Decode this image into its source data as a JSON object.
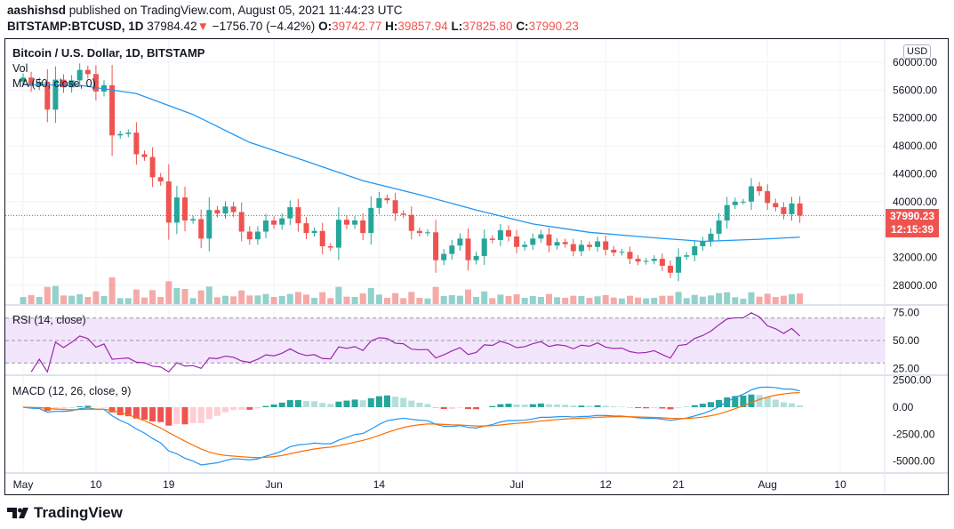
{
  "header": {
    "author": "aashishsd",
    "published": "published on TradingView.com, August 05, 2021 11:44:23 UTC",
    "symbol": "BITSTAMP:BTCUSD, 1D",
    "last": "37984.42",
    "change": "−1756.70 (−4.42%)",
    "o_label": "O:",
    "o": "39742.77",
    "h_label": "H:",
    "h": "39857.94",
    "l_label": "L:",
    "l": "37825.80",
    "c_label": "C:",
    "c": "37990.23"
  },
  "legend": {
    "title": "Bitcoin / U.S. Dollar, 1D, BITSTAMP",
    "vol": "Vol",
    "ma": "MA (50, close, 0)",
    "rsi": "RSI (14, close)",
    "macd": "MACD (12, 26, close, 9)"
  },
  "price_axis": {
    "currency": "USD",
    "ticks": [
      "60000.00",
      "56000.00",
      "52000.00",
      "48000.00",
      "44000.00",
      "40000.00",
      "32000.00",
      "28000.00"
    ],
    "last_price": "37990.23",
    "countdown": "12:15:39"
  },
  "rsi_axis": {
    "ticks": [
      "75.00",
      "50.00",
      "25.00"
    ]
  },
  "macd_axis": {
    "ticks": [
      "2500.00",
      "0.00",
      "-2500.00",
      "-5000.00"
    ]
  },
  "time_axis": {
    "ticks": [
      "May",
      "10",
      "19",
      "Jun",
      "14",
      "Jul",
      "12",
      "21",
      "Aug",
      "10"
    ]
  },
  "brand": "TradingView",
  "colors": {
    "up": "#26a69a",
    "down": "#ef5350",
    "ma": "#2196f3",
    "rsi": "#9c27b0",
    "macd": "#2196f3",
    "signal": "#ff6d00"
  },
  "chart_data": {
    "type": "candlestick",
    "start_date": "2021-05-01",
    "interval": "1D",
    "ylim": [
      26000,
      62000
    ],
    "close": [
      57800,
      56600,
      57200,
      53200,
      57500,
      56400,
      57400,
      58900,
      58300,
      55800,
      56700,
      49500,
      49700,
      49900,
      46800,
      46400,
      43500,
      42900,
      37000,
      40600,
      37300,
      37500,
      34700,
      38800,
      38300,
      39300,
      38500,
      35700,
      34600,
      35700,
      37300,
      36700,
      37600,
      39200,
      36900,
      35500,
      35800,
      33600,
      33400,
      37400,
      36700,
      37300,
      35500,
      39100,
      40500,
      40200,
      38300,
      38100,
      35800,
      35500,
      35600,
      31600,
      32500,
      33700,
      34700,
      31600,
      32200,
      34700,
      34500,
      35900,
      35000,
      33500,
      33800,
      34700,
      35300,
      33700,
      34200,
      33900,
      32900,
      33800,
      33500,
      34300,
      33100,
      32700,
      32800,
      31800,
      31400,
      31500,
      31800,
      30800,
      29800,
      32100,
      32300,
      33600,
      34300,
      35400,
      37300,
      39500,
      40000,
      40000,
      42200,
      41500,
      39800,
      39200,
      38200,
      39742.77,
      37990.23
    ],
    "ma50": {
      "dates": [
        "2021-05-01",
        "2021-05-08",
        "2021-05-15",
        "2021-05-22",
        "2021-05-29",
        "2021-06-05",
        "2021-06-12",
        "2021-06-19",
        "2021-06-26",
        "2021-07-03",
        "2021-07-10",
        "2021-07-17",
        "2021-07-24",
        "2021-07-31",
        "2021-08-05"
      ],
      "values": [
        56800,
        56700,
        55500,
        52500,
        48500,
        45800,
        43000,
        41000,
        38800,
        36800,
        35600,
        34900,
        34300,
        34600,
        34900
      ]
    },
    "rsi": {
      "period": 14,
      "ylim": [
        20,
        80
      ],
      "bands": [
        30,
        50,
        70
      ]
    },
    "macd": {
      "fast": 12,
      "slow": 26,
      "signal": 9,
      "ylim": [
        -6000,
        3000
      ]
    }
  }
}
